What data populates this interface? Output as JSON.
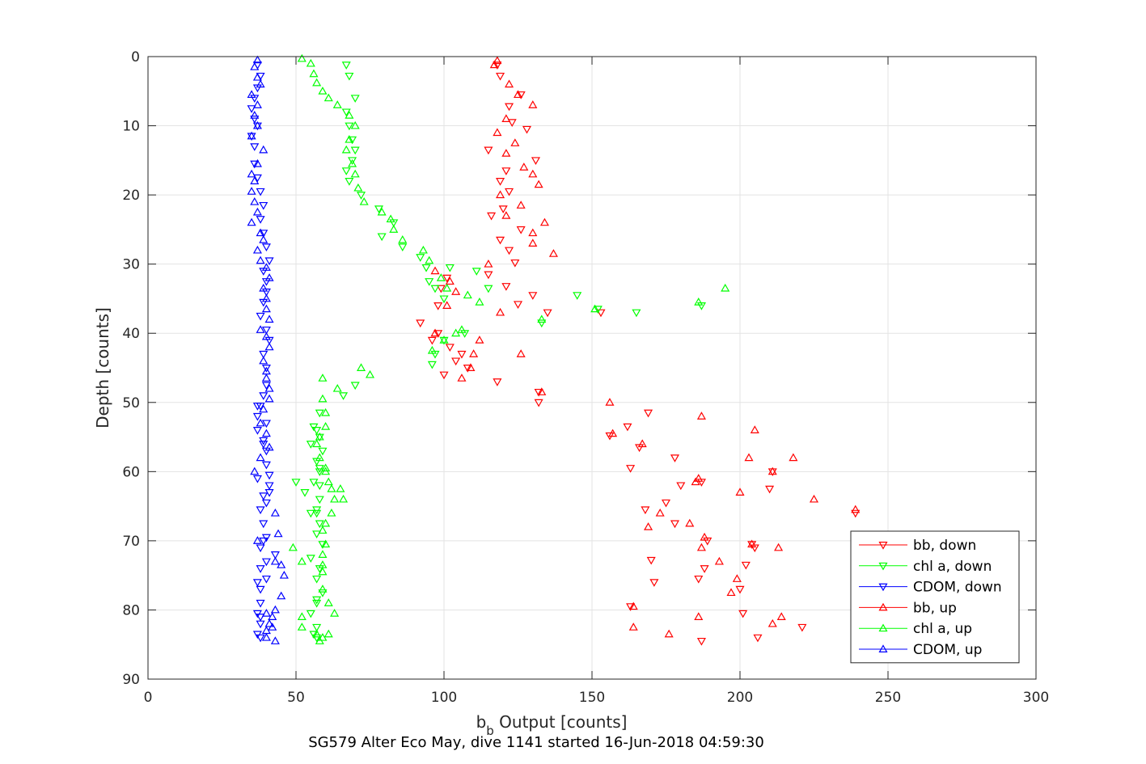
{
  "chart_data": {
    "type": "scatter",
    "title": "SG579 Alter Eco May, dive 1141 started 16-Jun-2018 04:59:30",
    "xlabel_main": "b",
    "xlabel_sub": "b",
    "xlabel_rest": " Output [counts]",
    "ylabel": "Depth [counts]",
    "xlim": [
      0,
      300
    ],
    "ylim": [
      0,
      90
    ],
    "y_reversed": true,
    "xticks": [
      0,
      50,
      100,
      150,
      200,
      250,
      300
    ],
    "yticks": [
      0,
      10,
      20,
      30,
      40,
      50,
      60,
      70,
      80,
      90
    ],
    "grid": true,
    "legend_location": "bottom-right",
    "series": [
      {
        "name": "bb, down",
        "color": "#ff0000",
        "marker": "triangle-down",
        "x": [
          118,
          119,
          126,
          122,
          123,
          128,
          115,
          131,
          121,
          119,
          122,
          120,
          116,
          126,
          119,
          122,
          124,
          115,
          121,
          130,
          125,
          135,
          101,
          99,
          98,
          92,
          98,
          102,
          104,
          100,
          96,
          108,
          106,
          118,
          132,
          132,
          153,
          156,
          169,
          162,
          166,
          178,
          163,
          187,
          175,
          178,
          189,
          170,
          186,
          200,
          205,
          204,
          202,
          188,
          171,
          210,
          211,
          163,
          201,
          221,
          206,
          187,
          168,
          180,
          239
        ],
        "y": [
          1.2,
          2.8,
          5.5,
          7.2,
          9.5,
          10.5,
          13.5,
          15.0,
          16.5,
          18.0,
          19.5,
          22.0,
          23.0,
          25.0,
          26.5,
          28.0,
          29.8,
          31.5,
          33.2,
          34.5,
          35.8,
          37.0,
          32.0,
          33.5,
          36.0,
          38.5,
          40.0,
          42.0,
          44.0,
          46.0,
          41.0,
          45.0,
          43.0,
          47.0,
          48.5,
          50.0,
          37.0,
          54.8,
          51.5,
          53.5,
          56.5,
          58.0,
          59.5,
          61.5,
          64.5,
          67.5,
          70.0,
          72.8,
          75.5,
          77.0,
          71.0,
          70.5,
          73.5,
          74.0,
          76.0,
          62.5,
          60.0,
          79.5,
          80.5,
          82.5,
          84.0,
          84.5,
          65.5,
          62.0,
          66.0
        ]
      },
      {
        "name": "chl a, down",
        "color": "#00ff00",
        "marker": "triangle-down",
        "x": [
          67,
          68,
          70,
          67,
          68,
          69,
          70,
          69,
          67,
          68,
          72,
          78,
          83,
          79,
          86,
          92,
          94,
          95,
          97,
          100,
          102,
          111,
          115,
          145,
          152,
          165,
          187,
          133,
          107,
          100,
          97,
          96,
          70,
          66,
          58,
          56,
          58,
          59,
          57,
          58,
          56,
          58,
          55,
          58,
          57,
          59,
          55,
          58,
          57,
          59,
          57,
          55,
          57,
          56,
          57,
          57,
          57,
          58,
          58,
          57,
          55,
          50,
          53,
          57
        ],
        "y": [
          1.2,
          2.8,
          6.0,
          8.0,
          10.0,
          12.0,
          13.5,
          15.0,
          16.5,
          18.0,
          20.0,
          22.0,
          24.0,
          26.0,
          27.5,
          29.0,
          30.5,
          32.5,
          33.5,
          35.0,
          30.5,
          31.0,
          33.5,
          34.5,
          36.5,
          37.0,
          36.0,
          38.5,
          40.0,
          41.0,
          43.0,
          44.5,
          47.5,
          49.0,
          51.5,
          53.5,
          55.0,
          57.0,
          58.5,
          59.5,
          61.5,
          64.0,
          66.0,
          67.5,
          69.0,
          70.5,
          72.5,
          74.0,
          75.5,
          77.5,
          79.0,
          80.5,
          82.5,
          83.5,
          84.0,
          78.5,
          65.5,
          62.0,
          60.0,
          54.0,
          56.0,
          61.5,
          63.0,
          66.0
        ]
      },
      {
        "name": "CDOM, down",
        "color": "#0000ff",
        "marker": "triangle-down",
        "x": [
          37,
          38,
          37,
          36,
          35,
          36,
          37,
          35,
          36,
          36,
          37,
          38,
          39,
          38,
          39,
          40,
          41,
          39,
          40,
          40,
          39,
          38,
          40,
          41,
          39,
          40,
          40,
          39,
          38,
          37,
          37,
          39,
          40,
          40,
          41,
          41,
          39,
          38,
          39,
          40,
          38,
          40,
          40,
          38,
          38,
          37,
          38,
          37,
          38,
          38,
          37,
          38,
          43,
          39,
          40,
          41,
          37,
          39,
          40,
          37
        ],
        "y": [
          1.2,
          2.8,
          4.5,
          6.0,
          7.5,
          9.0,
          10.0,
          11.5,
          13.0,
          15.5,
          17.5,
          19.5,
          21.5,
          23.5,
          25.5,
          27.5,
          29.5,
          31.0,
          32.5,
          34.0,
          35.5,
          37.5,
          39.5,
          41.0,
          43.0,
          45.0,
          47.5,
          49.0,
          50.5,
          52.0,
          54.0,
          55.5,
          57.0,
          59.0,
          60.5,
          62.0,
          63.5,
          65.5,
          67.5,
          69.5,
          71.0,
          73.0,
          75.5,
          77.0,
          79.0,
          80.5,
          82.0,
          83.5,
          84.0,
          81.0,
          76.0,
          74.0,
          72.0,
          70.0,
          64.5,
          63.0,
          61.0,
          56.0,
          53.0,
          50.5
        ]
      },
      {
        "name": "bb, up",
        "color": "#ff0000",
        "marker": "triangle-up",
        "x": [
          118,
          117,
          122,
          125,
          130,
          121,
          118,
          124,
          121,
          127,
          130,
          132,
          119,
          126,
          121,
          134,
          130,
          130,
          137,
          115,
          102,
          97,
          104,
          101,
          97,
          110,
          109,
          106,
          126,
          112,
          119,
          133,
          156,
          187,
          157,
          167,
          185,
          205,
          203,
          218,
          211,
          186,
          200,
          225,
          239,
          183,
          188,
          187,
          199,
          197,
          193,
          204,
          213,
          164,
          186,
          211,
          176,
          164,
          214,
          169,
          173
        ],
        "y": [
          0.6,
          1.2,
          4.0,
          5.5,
          7.0,
          9.0,
          11.0,
          12.5,
          14.0,
          16.0,
          17.0,
          18.5,
          20.0,
          21.5,
          23.0,
          24.0,
          25.5,
          27.0,
          28.5,
          30.0,
          32.5,
          31.0,
          34.0,
          36.0,
          40.0,
          43.0,
          45.0,
          46.5,
          43.0,
          41.0,
          37.0,
          48.5,
          50.0,
          52.0,
          54.5,
          56.0,
          61.5,
          54.0,
          58.0,
          58.0,
          60.0,
          61.0,
          63.0,
          64.0,
          65.5,
          67.5,
          69.5,
          71.0,
          75.5,
          77.5,
          73.0,
          70.5,
          71.0,
          79.5,
          81.0,
          82.0,
          83.5,
          82.5,
          81.0,
          68.0,
          66.0
        ]
      },
      {
        "name": "chl a, up",
        "color": "#00ff00",
        "marker": "triangle-up",
        "x": [
          52,
          55,
          56,
          57,
          59,
          61,
          64,
          68,
          70,
          68,
          67,
          69,
          70,
          71,
          73,
          79,
          82,
          83,
          86,
          93,
          95,
          99,
          101,
          108,
          112,
          195,
          186,
          151,
          133,
          106,
          104,
          100,
          96,
          72,
          75,
          64,
          59,
          59,
          60,
          60,
          58,
          57,
          58,
          60,
          60,
          61,
          62,
          63,
          65,
          66,
          62,
          60,
          59,
          60,
          59,
          59,
          59,
          59,
          61,
          63,
          52,
          52,
          57,
          59,
          58,
          61,
          49,
          52
        ],
        "y": [
          0.3,
          1.0,
          2.5,
          3.8,
          5.0,
          6.0,
          7.0,
          8.5,
          10.0,
          12.0,
          13.5,
          15.5,
          17.0,
          19.0,
          21.0,
          22.5,
          23.5,
          25.0,
          26.5,
          28.0,
          29.5,
          32.0,
          33.5,
          34.5,
          35.5,
          33.5,
          35.5,
          36.5,
          38.0,
          39.5,
          40.0,
          41.0,
          42.5,
          45.0,
          46.0,
          48.0,
          46.5,
          49.5,
          51.5,
          53.5,
          55.0,
          56.0,
          58.0,
          59.5,
          60.0,
          61.5,
          62.5,
          64.0,
          62.5,
          64.0,
          66.0,
          67.5,
          68.5,
          70.5,
          72.0,
          73.5,
          74.5,
          77.0,
          79.0,
          80.5,
          81.0,
          82.5,
          83.5,
          84.0,
          84.5,
          83.5,
          71.0,
          73.0
        ]
      },
      {
        "name": "CDOM, up",
        "color": "#0000ff",
        "marker": "triangle-up",
        "x": [
          37,
          36,
          37,
          38,
          35,
          37,
          36,
          37,
          35,
          39,
          37,
          35,
          36,
          35,
          36,
          37,
          35,
          38,
          39,
          37,
          38,
          40,
          41,
          39,
          40,
          40,
          41,
          38,
          40,
          41,
          39,
          40,
          40,
          41,
          41,
          39,
          38,
          40,
          41,
          38,
          43,
          44,
          45,
          46,
          43,
          45,
          43,
          42,
          41,
          40,
          40,
          43,
          42,
          40,
          37,
          36
        ],
        "y": [
          0.5,
          1.5,
          3.0,
          4.0,
          5.5,
          7.0,
          8.5,
          10.0,
          11.5,
          13.5,
          15.5,
          17.0,
          18.0,
          19.5,
          21.0,
          22.5,
          24.0,
          25.5,
          26.5,
          28.0,
          29.5,
          30.5,
          32.0,
          33.5,
          35.0,
          36.5,
          38.0,
          39.5,
          40.5,
          42.0,
          44.0,
          45.5,
          46.5,
          48.0,
          49.5,
          51.0,
          53.0,
          54.5,
          56.5,
          58.0,
          66.0,
          69.0,
          73.5,
          75.0,
          73.0,
          78.0,
          80.0,
          81.0,
          82.0,
          83.0,
          84.0,
          84.5,
          82.5,
          80.5,
          70.0,
          60.0
        ]
      }
    ]
  }
}
